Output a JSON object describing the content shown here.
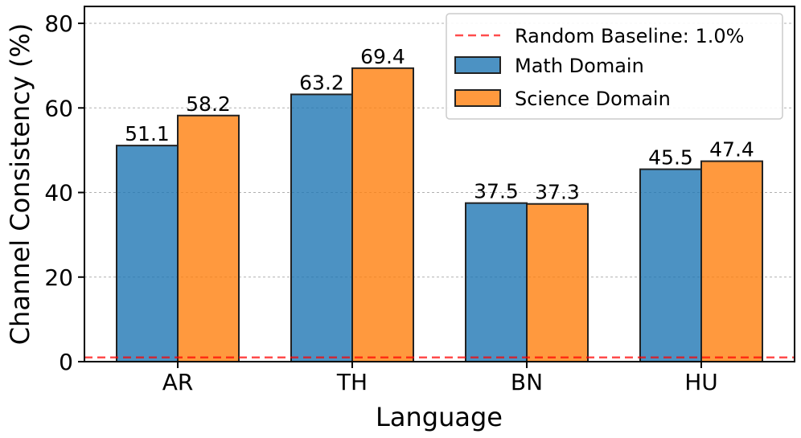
{
  "chart_data": {
    "type": "bar",
    "categories": [
      "AR",
      "TH",
      "BN",
      "HU"
    ],
    "series": [
      {
        "name": "Math Domain",
        "values": [
          51.1,
          63.2,
          37.5,
          45.5
        ],
        "color": "#1f77b4"
      },
      {
        "name": "Science Domain",
        "values": [
          58.2,
          69.4,
          37.3,
          47.4
        ],
        "color": "#ff7f0e"
      }
    ],
    "baseline": {
      "label": "Random Baseline: 1.0%",
      "value": 1.0,
      "color": "#ff0000"
    },
    "xlabel": "Language",
    "ylabel": "Channel Consistency (%)",
    "ylim": [
      0,
      84
    ],
    "yticks": [
      0,
      20,
      40,
      60,
      80
    ],
    "grid": "horizontal dotted",
    "legend_position": "top-right"
  }
}
